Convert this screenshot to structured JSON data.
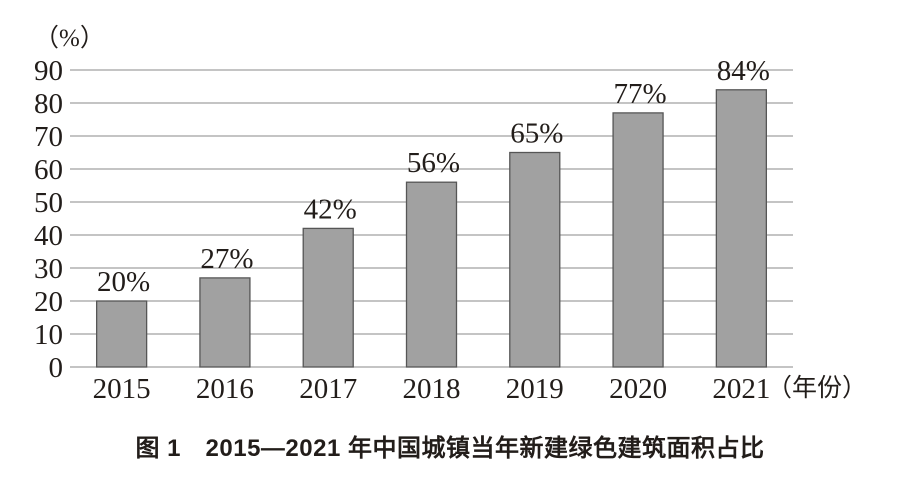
{
  "caption": "图 1　2015—2021 年中国城镇当年新建绿色建筑面积占比",
  "chart_data": {
    "type": "bar",
    "title": "图 1 2015—2021 年中国城镇当年新建绿色建筑面积占比",
    "categories": [
      "2015",
      "2016",
      "2017",
      "2018",
      "2019",
      "2020",
      "2021"
    ],
    "values": [
      20,
      27,
      42,
      56,
      65,
      77,
      84
    ],
    "bar_labels": [
      "20%",
      "27%",
      "42%",
      "56%",
      "65%",
      "77%",
      "84%"
    ],
    "xlabel": "（年份）",
    "ylabel": "（%）",
    "ylim": [
      0,
      90
    ],
    "yticks": [
      0,
      10,
      20,
      30,
      40,
      50,
      60,
      70,
      80,
      90
    ],
    "grid": true,
    "legend": "none",
    "colors": {
      "bar_fill": "#a1a1a1",
      "bar_stroke": "#565656",
      "grid": "#8a8a8a",
      "text": "#221d1a",
      "background": "#ffffff"
    }
  }
}
